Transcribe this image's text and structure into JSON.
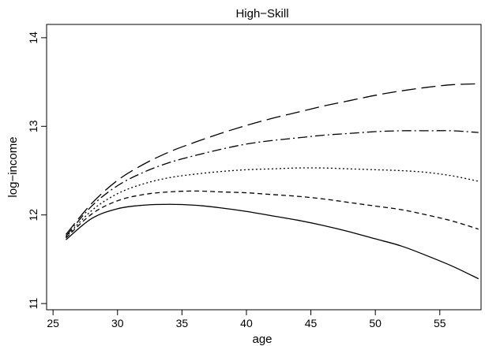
{
  "chart_data": {
    "type": "line",
    "title": "High−Skill",
    "xlabel": "age",
    "ylabel": "log−income",
    "xlim": [
      24.5,
      58.2
    ],
    "ylim": [
      10.93,
      14.15
    ],
    "xticks": [
      25,
      30,
      35,
      40,
      45,
      50,
      55
    ],
    "xtick_labels": [
      "25",
      "30",
      "35",
      "40",
      "45",
      "50",
      "55"
    ],
    "yticks": [
      11,
      12,
      13,
      14
    ],
    "ytick_labels": [
      "11",
      "12",
      "13",
      "14"
    ],
    "grid": false,
    "legend": "none",
    "x": [
      26,
      28,
      30,
      32,
      34,
      36,
      38,
      40,
      42,
      44,
      46,
      48,
      50,
      52,
      54,
      56,
      58
    ],
    "series": [
      {
        "dash": "18,7",
        "values": [
          11.78,
          12.13,
          12.39,
          12.57,
          12.71,
          12.82,
          12.92,
          13.01,
          13.09,
          13.16,
          13.23,
          13.29,
          13.35,
          13.4,
          13.44,
          13.47,
          13.48
        ]
      },
      {
        "dash": "12,4,2,4",
        "values": [
          11.76,
          12.1,
          12.33,
          12.48,
          12.59,
          12.67,
          12.74,
          12.8,
          12.84,
          12.87,
          12.9,
          12.92,
          12.94,
          12.95,
          12.95,
          12.95,
          12.93
        ]
      },
      {
        "dash": "2,3",
        "values": [
          11.75,
          12.05,
          12.24,
          12.35,
          12.42,
          12.46,
          12.49,
          12.51,
          12.52,
          12.53,
          12.53,
          12.52,
          12.51,
          12.5,
          12.48,
          12.44,
          12.38
        ]
      },
      {
        "dash": "6,4",
        "values": [
          11.74,
          12.01,
          12.16,
          12.23,
          12.26,
          12.27,
          12.26,
          12.25,
          12.23,
          12.21,
          12.18,
          12.14,
          12.1,
          12.06,
          12.0,
          11.93,
          11.84
        ]
      },
      {
        "dash": "",
        "values": [
          11.72,
          11.96,
          12.07,
          12.11,
          12.12,
          12.11,
          12.08,
          12.04,
          11.99,
          11.94,
          11.88,
          11.81,
          11.73,
          11.65,
          11.54,
          11.42,
          11.28
        ]
      }
    ]
  }
}
